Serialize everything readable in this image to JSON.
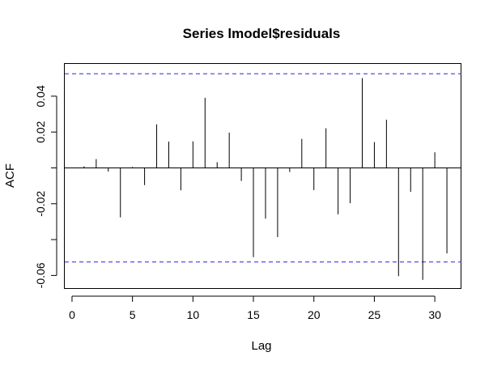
{
  "chart_data": {
    "type": "bar",
    "title": "Series lmodel$residuals",
    "xlabel": "Lag",
    "ylabel": "ACF",
    "xlim": [
      -0.6,
      32.2
    ],
    "ylim": [
      -0.0675,
      0.058
    ],
    "x_ticks": [
      0,
      5,
      10,
      15,
      20,
      25,
      30
    ],
    "x_tick_labels": [
      "0",
      "5",
      "10",
      "15",
      "20",
      "25",
      "30"
    ],
    "y_ticks": [
      -0.06,
      -0.02,
      0.02,
      0.04
    ],
    "y_tick_labels": [
      "-0.06",
      "-0.02",
      "0.02",
      "0.04"
    ],
    "y_minor_ticks": [
      -0.04,
      0.0
    ],
    "confidence_limit": 0.0525,
    "confidence_color": "#2222ee",
    "lags": [
      1,
      2,
      3,
      4,
      5,
      6,
      7,
      8,
      9,
      10,
      11,
      12,
      13,
      14,
      15,
      16,
      17,
      18,
      19,
      20,
      21,
      22,
      23,
      24,
      25,
      26,
      27,
      28,
      29,
      30,
      31
    ],
    "values": [
      0.0009,
      0.0049,
      -0.0021,
      -0.0276,
      0.0005,
      -0.0096,
      0.0243,
      0.0147,
      -0.0125,
      0.0148,
      0.0391,
      0.0032,
      0.0197,
      -0.0073,
      -0.0498,
      -0.0283,
      -0.0386,
      -0.0023,
      0.0162,
      -0.0124,
      0.0221,
      -0.0259,
      -0.0197,
      0.0501,
      0.0144,
      0.0269,
      -0.0604,
      -0.0134,
      -0.0625,
      0.0087,
      -0.0477
    ]
  }
}
